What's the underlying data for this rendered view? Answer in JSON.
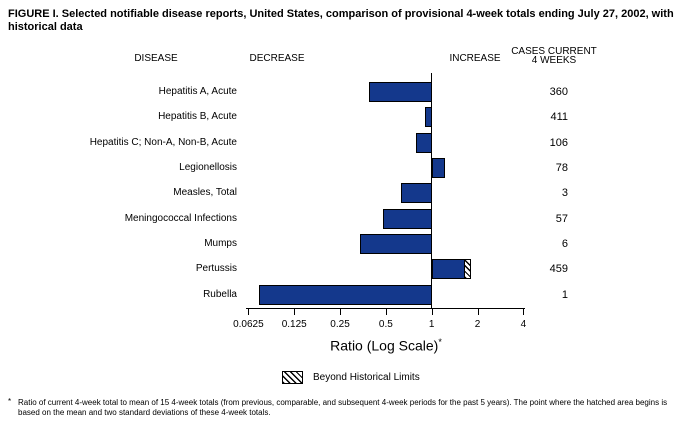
{
  "title": "FIGURE I. Selected notifiable disease reports, United States, comparison of provisional 4-week totals ending July 27, 2002, with historical data",
  "headers": {
    "disease": "DISEASE",
    "decrease": "DECREASE",
    "increase": "INCREASE",
    "cases_line1": "CASES CURRENT",
    "cases_line2": "4 WEEKS"
  },
  "chart_data": {
    "type": "bar",
    "orientation": "horizontal",
    "scale": "log",
    "baseline": 1,
    "xlim": [
      0.0625,
      4
    ],
    "axis_ticks": [
      "0.0625",
      "0.125",
      "0.25",
      "0.5",
      "1",
      "2",
      "4"
    ],
    "xlabel": "Ratio (Log Scale)*",
    "xlabel_text": "Ratio (Log Scale)",
    "xlabel_superscript": "*",
    "rows": [
      {
        "disease": "Hepatitis A, Acute",
        "ratio": 0.39,
        "cases": "360",
        "beyond_historical_limits": false
      },
      {
        "disease": "Hepatitis B, Acute",
        "ratio": 0.9,
        "cases": "411",
        "beyond_historical_limits": false
      },
      {
        "disease": "Hepatitis C; Non-A, Non-B, Acute",
        "ratio": 0.79,
        "cases": "106",
        "beyond_historical_limits": false
      },
      {
        "disease": "Legionellosis",
        "ratio": 1.22,
        "cases": "78",
        "beyond_historical_limits": false
      },
      {
        "disease": "Measles, Total",
        "ratio": 0.63,
        "cases": "3",
        "beyond_historical_limits": false
      },
      {
        "disease": "Meningococcal Infections",
        "ratio": 0.48,
        "cases": "57",
        "beyond_historical_limits": false
      },
      {
        "disease": "Mumps",
        "ratio": 0.34,
        "cases": "6",
        "beyond_historical_limits": false
      },
      {
        "disease": "Pertussis",
        "ratio": 1.8,
        "cases": "459",
        "beyond_historical_limits": true,
        "hatch_start_ratio": 1.67
      },
      {
        "disease": "Rubella",
        "ratio": 0.073,
        "cases": "1",
        "beyond_historical_limits": false
      }
    ]
  },
  "legend": {
    "label": "Beyond Historical Limits"
  },
  "footnote": {
    "marker": "*",
    "text": "Ratio of current 4-week total to mean of 15 4-week totals (from previous, comparable, and subsequent 4-week periods for the past 5 years). The point where the hatched area begins is based on the mean and two standard deviations of these 4-week totals."
  },
  "colors": {
    "bar_fill": "#14388c",
    "bar_border": "#000000",
    "axis": "#000000",
    "text": "#000000",
    "background": "#ffffff"
  }
}
